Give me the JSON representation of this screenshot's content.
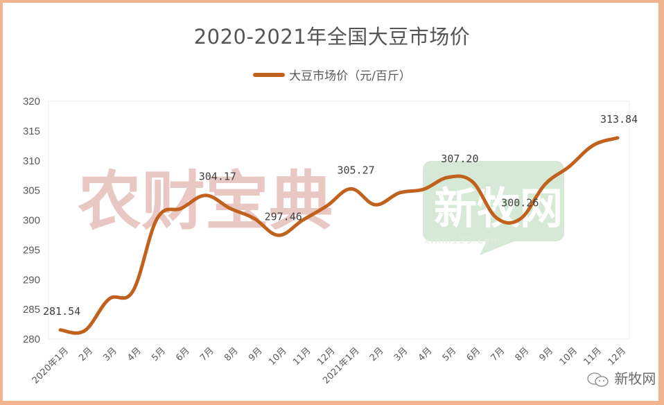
{
  "header": {
    "title": "2020-2021年全国大豆市场价",
    "legend_label": "大豆市场价（元/百斤）"
  },
  "watermarks": {
    "left": "农财宝典",
    "right": "新牧网",
    "right_url": "xinm123.com"
  },
  "source": {
    "label": "新牧网",
    "icon": "wechat-icon"
  },
  "colors": {
    "line": "#c0621d",
    "border": "#f2b48e",
    "grid": "#ececec",
    "text": "#595959"
  },
  "chart_data": {
    "type": "line",
    "title": "2020-2021年全国大豆市场价",
    "xlabel": "",
    "ylabel": "",
    "ylim": [
      280,
      320
    ],
    "yticks": [
      280,
      285,
      290,
      295,
      300,
      305,
      310,
      315,
      320
    ],
    "grid": false,
    "legend_position": "top",
    "categories": [
      "2020年1月",
      "2月",
      "3月",
      "4月",
      "5月",
      "6月",
      "7月",
      "8月",
      "9月",
      "10月",
      "11月",
      "12月",
      "2021年1月",
      "2月",
      "3月",
      "4月",
      "5月",
      "6月",
      "7月",
      "8月",
      "9月",
      "10月",
      "11月",
      "12月"
    ],
    "series": [
      {
        "name": "大豆市场价（元/百斤）",
        "values": [
          281.54,
          281.4,
          286.7,
          288.1,
          300.3,
          302.0,
          304.17,
          302.0,
          300.3,
          297.46,
          300.0,
          302.4,
          305.27,
          302.6,
          304.6,
          305.2,
          307.2,
          306.5,
          300.4,
          300.26,
          306.0,
          309.0,
          312.6,
          313.84
        ]
      }
    ],
    "annotations": [
      {
        "index": 0,
        "text": "281.54"
      },
      {
        "index": 6,
        "text": "304.17"
      },
      {
        "index": 9,
        "text": "297.46"
      },
      {
        "index": 12,
        "text": "305.27"
      },
      {
        "index": 16,
        "text": "307.20"
      },
      {
        "index": 19,
        "text": "300.26"
      },
      {
        "index": 23,
        "text": "313.84"
      }
    ]
  }
}
